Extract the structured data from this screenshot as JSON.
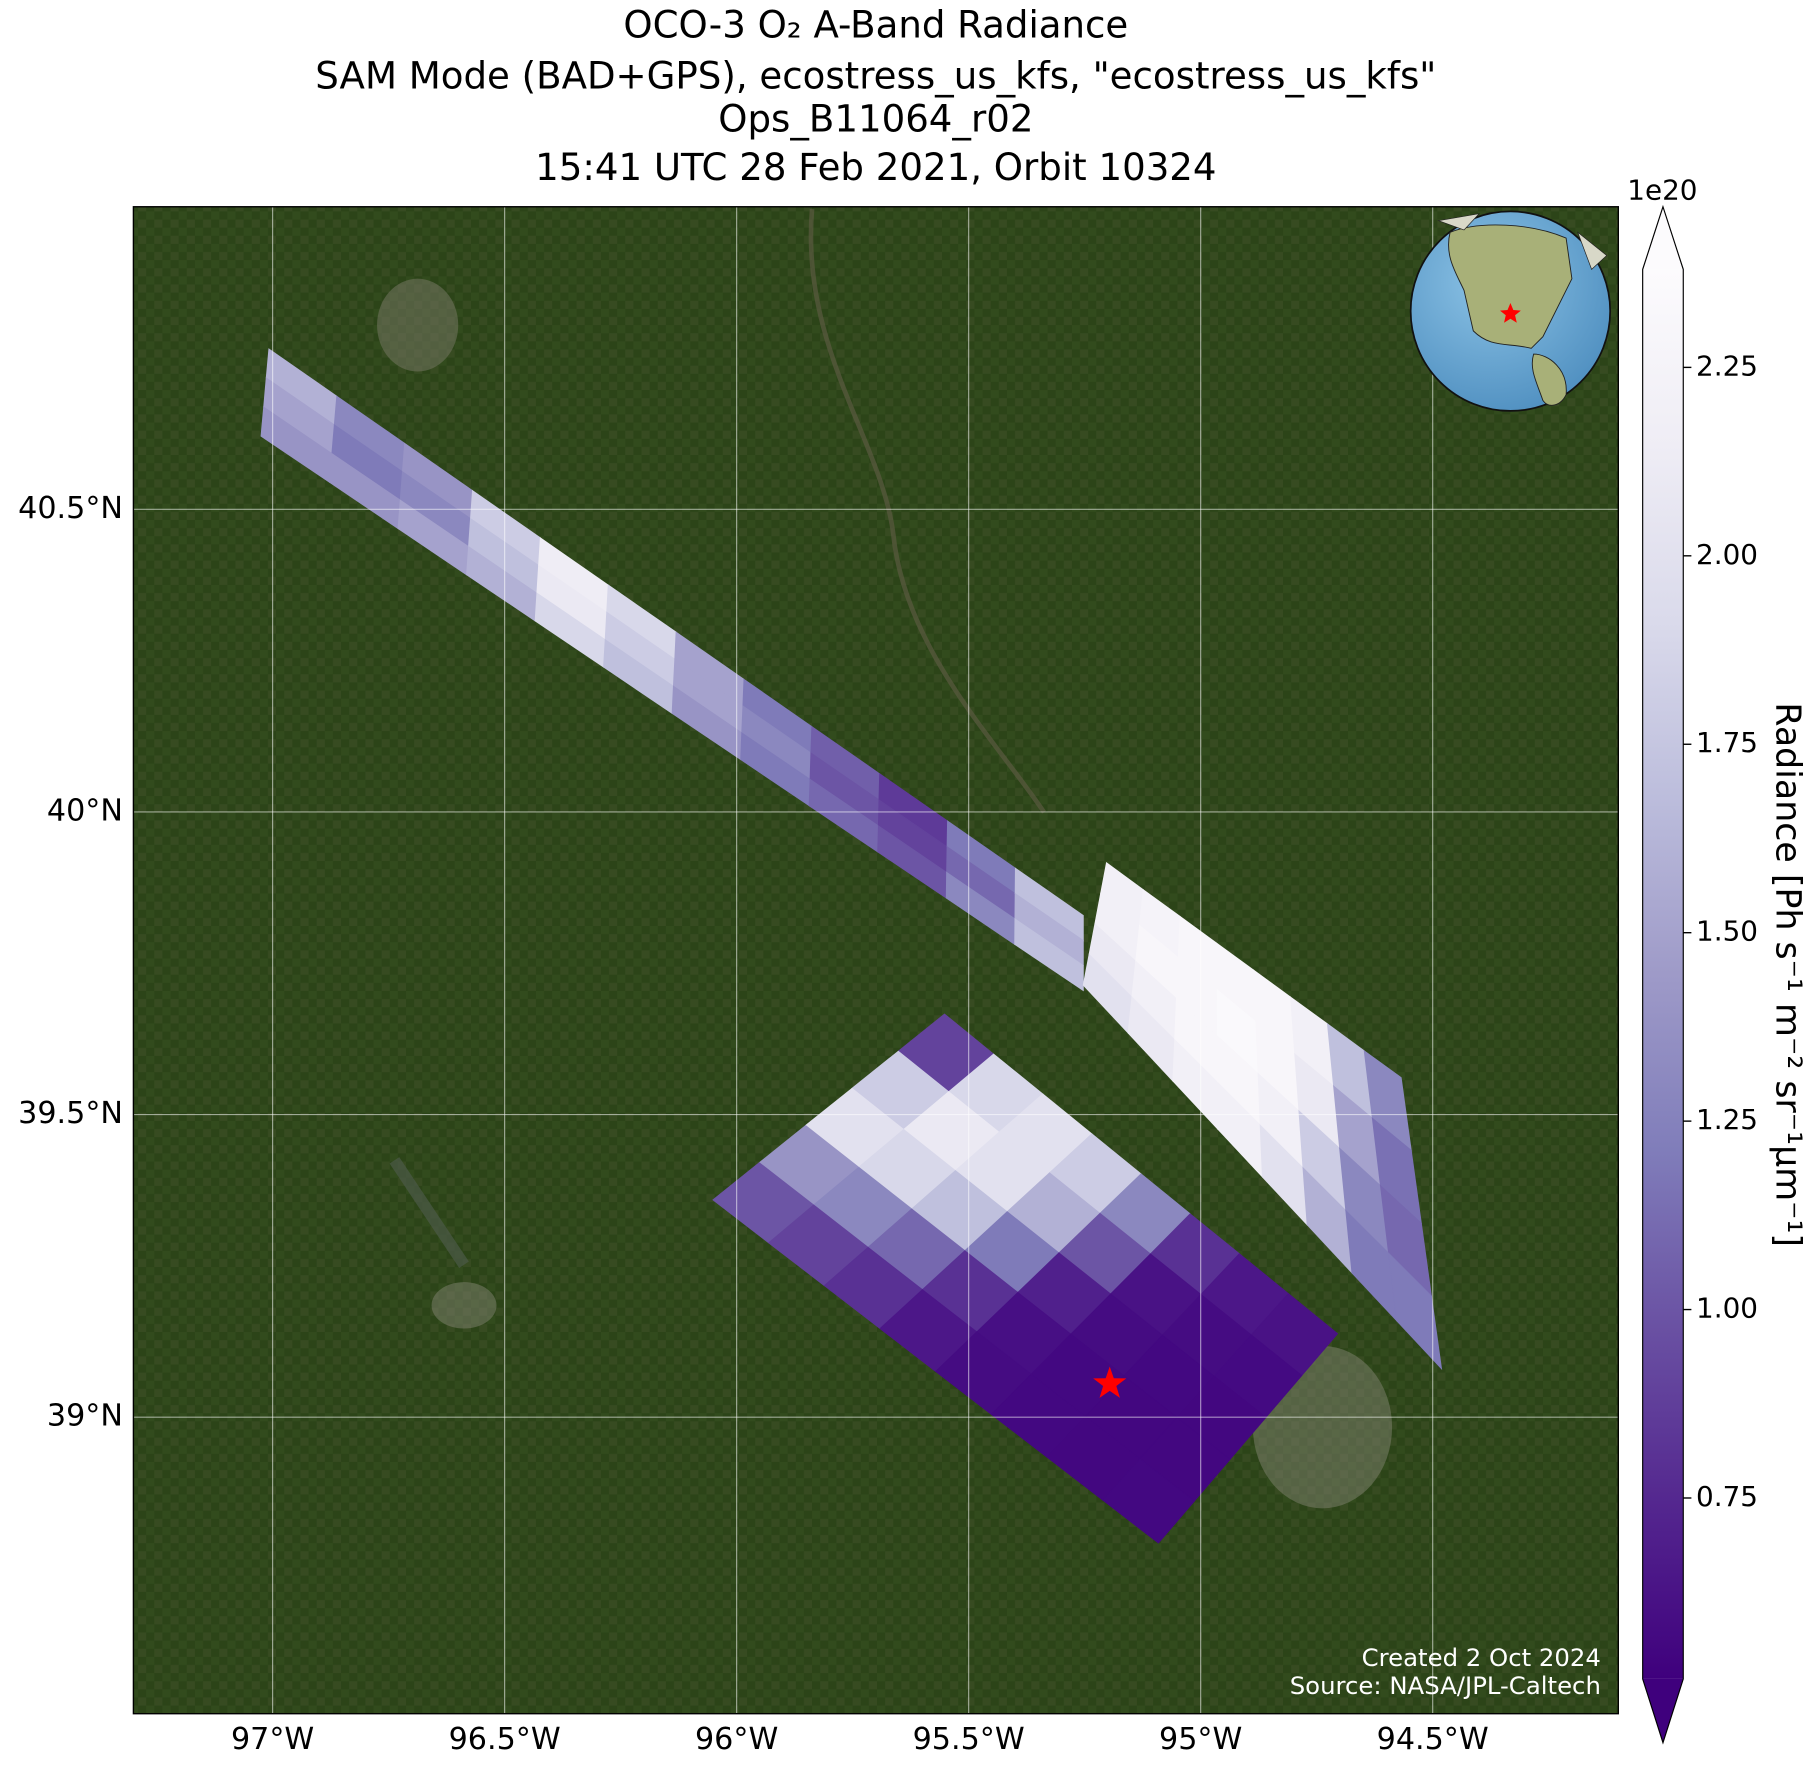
{
  "chart_data": {
    "type": "map",
    "title": [
      "OCO-3 O₂ A-Band Radiance",
      "SAM Mode (BAD+GPS), ecostress_us_kfs, \"ecostress_us_kfs\"",
      "Ops_B11064_r02",
      "15:41 UTC 28 Feb 2021, Orbit 10324"
    ],
    "xlim": [
      -97.3,
      -94.1
    ],
    "ylim": [
      38.51,
      41.0
    ],
    "xticks": [
      {
        "value": -97,
        "label": "97°W"
      },
      {
        "value": -96.5,
        "label": "96.5°W"
      },
      {
        "value": -96,
        "label": "96°W"
      },
      {
        "value": -95.5,
        "label": "95.5°W"
      },
      {
        "value": -95,
        "label": "95°W"
      },
      {
        "value": -94.5,
        "label": "94.5°W"
      }
    ],
    "yticks": [
      {
        "value": 39,
        "label": "39°N"
      },
      {
        "value": 39.5,
        "label": "39.5°N"
      },
      {
        "value": 40,
        "label": "40°N"
      },
      {
        "value": 40.5,
        "label": "40.5°N"
      }
    ],
    "grid": true,
    "colorbar": {
      "label": "Radiance [Ph s⁻¹ m⁻² sr⁻¹μm⁻¹]",
      "offset_label": "1e20",
      "clim": [
        0.51,
        2.38
      ],
      "ticks": [
        0.75,
        {
          "value": 1,
          "label": "1.00"
        },
        1.25,
        {
          "value": 1.5,
          "label": "1.50"
        },
        1.75,
        {
          "value": 2,
          "label": "2.00"
        },
        2.25
      ],
      "colors": [
        "#3f007d",
        "#54278f",
        "#6a51a3",
        "#807dba",
        "#9e9ac8",
        "#bcbddc",
        "#dadaeb",
        "#efedf5",
        "#fcfbfd"
      ]
    },
    "swaths": [
      {
        "corners": [
          [
            -97.008,
            40.765
          ],
          [
            -97.025,
            40.621
          ],
          [
            -95.253,
            39.829
          ],
          [
            -95.253,
            39.705
          ]
        ],
        "values": [
          [
            1.6,
            1.5,
            1.4
          ],
          [
            1.3,
            1.2,
            1.4
          ],
          [
            1.4,
            1.3,
            1.5
          ],
          [
            1.8,
            1.7,
            1.6
          ],
          [
            2.15,
            2.1,
            1.9
          ],
          [
            1.9,
            1.8,
            1.7
          ],
          [
            1.5,
            1.5,
            1.4
          ],
          [
            1.2,
            1.3,
            1.2
          ],
          [
            1.05,
            1.0,
            1.1
          ],
          [
            0.85,
            0.9,
            1.0
          ],
          [
            1.2,
            1.1,
            1.3
          ],
          [
            1.7,
            1.6,
            1.7
          ]
        ]
      },
      {
        "corners": [
          [
            -95.203,
            39.916
          ],
          [
            -95.253,
            39.714
          ],
          [
            -94.568,
            39.561
          ],
          [
            -94.481,
            39.08
          ]
        ],
        "values": [
          [
            2.2,
            2.2,
            2.1,
            2.0
          ],
          [
            2.25,
            2.3,
            2.2,
            2.1
          ],
          [
            2.3,
            2.3,
            2.3,
            2.2
          ],
          [
            2.3,
            2.35,
            2.3,
            2.2
          ],
          [
            2.3,
            2.3,
            2.2,
            2.0
          ],
          [
            2.2,
            2.1,
            1.8,
            1.6
          ],
          [
            1.7,
            1.5,
            1.3,
            1.2
          ],
          [
            1.3,
            1.15,
            1.1,
            1.2
          ]
        ]
      },
      {
        "corners": [
          [
            -95.552,
            39.666
          ],
          [
            -96.051,
            39.359
          ],
          [
            -94.705,
            39.138
          ],
          [
            -95.091,
            38.792
          ]
        ],
        "values": [
          [
            0.9,
            1.8,
            2.0,
            1.4,
            1.0
          ],
          [
            1.9,
            2.1,
            1.9,
            1.3,
            0.9
          ],
          [
            2.0,
            2.0,
            1.7,
            1.1,
            0.8
          ],
          [
            1.8,
            1.6,
            1.2,
            0.8,
            0.65
          ],
          [
            1.3,
            1.0,
            0.7,
            0.6,
            0.58
          ],
          [
            0.8,
            0.62,
            0.58,
            0.56,
            0.56
          ],
          [
            0.65,
            0.58,
            0.56,
            0.55,
            0.55
          ],
          [
            0.62,
            0.57,
            0.55,
            0.55,
            0.56
          ]
        ]
      }
    ],
    "target": {
      "lon": -95.196,
      "lat": 39.055,
      "color": "#ff0000"
    },
    "credits": [
      "Created 2 Oct 2024",
      "Source: NASA/JPL-Caltech"
    ]
  }
}
